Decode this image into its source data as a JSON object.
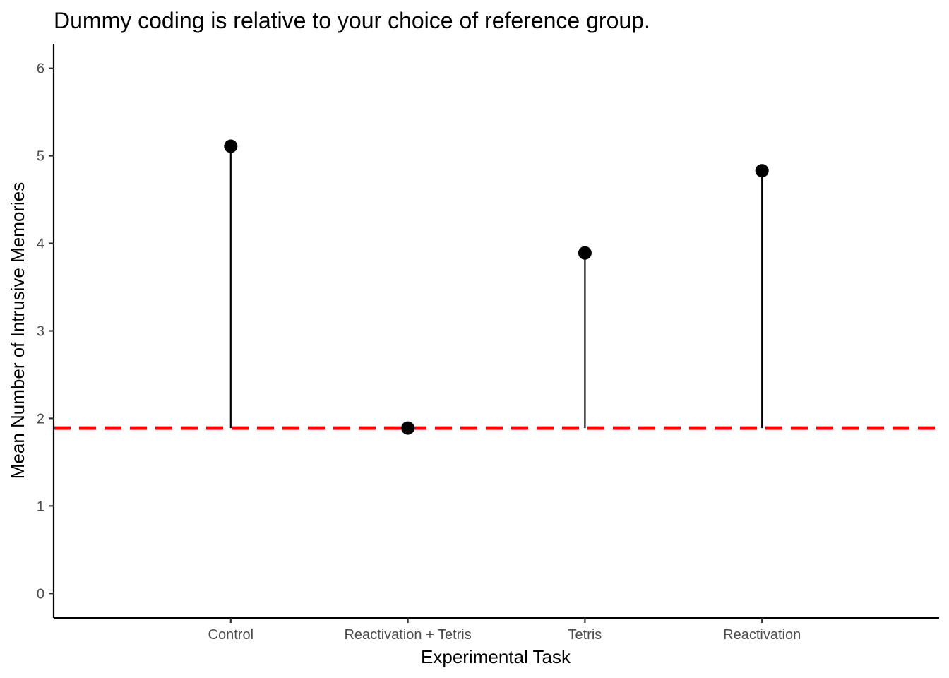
{
  "chart_data": {
    "type": "lollipop",
    "title": "Dummy coding is relative to your choice of reference group.",
    "xlabel": "Experimental Task",
    "ylabel": "Mean Number of Intrusive Memories",
    "categories": [
      "Control",
      "Reactivation + Tetris",
      "Tetris",
      "Reactivation"
    ],
    "values": [
      5.11,
      1.89,
      3.89,
      4.83
    ],
    "reference_line": {
      "value": 1.89,
      "color": "#ff0000",
      "style": "dashed"
    },
    "ylim": [
      -0.28,
      6.28
    ],
    "yticks": [
      0,
      1,
      2,
      3,
      4,
      5,
      6
    ],
    "grid": false,
    "colors": {
      "points": "#000000",
      "stems": "#000000",
      "axes": "#000000",
      "tick_labels": "#4d4d4d"
    }
  }
}
